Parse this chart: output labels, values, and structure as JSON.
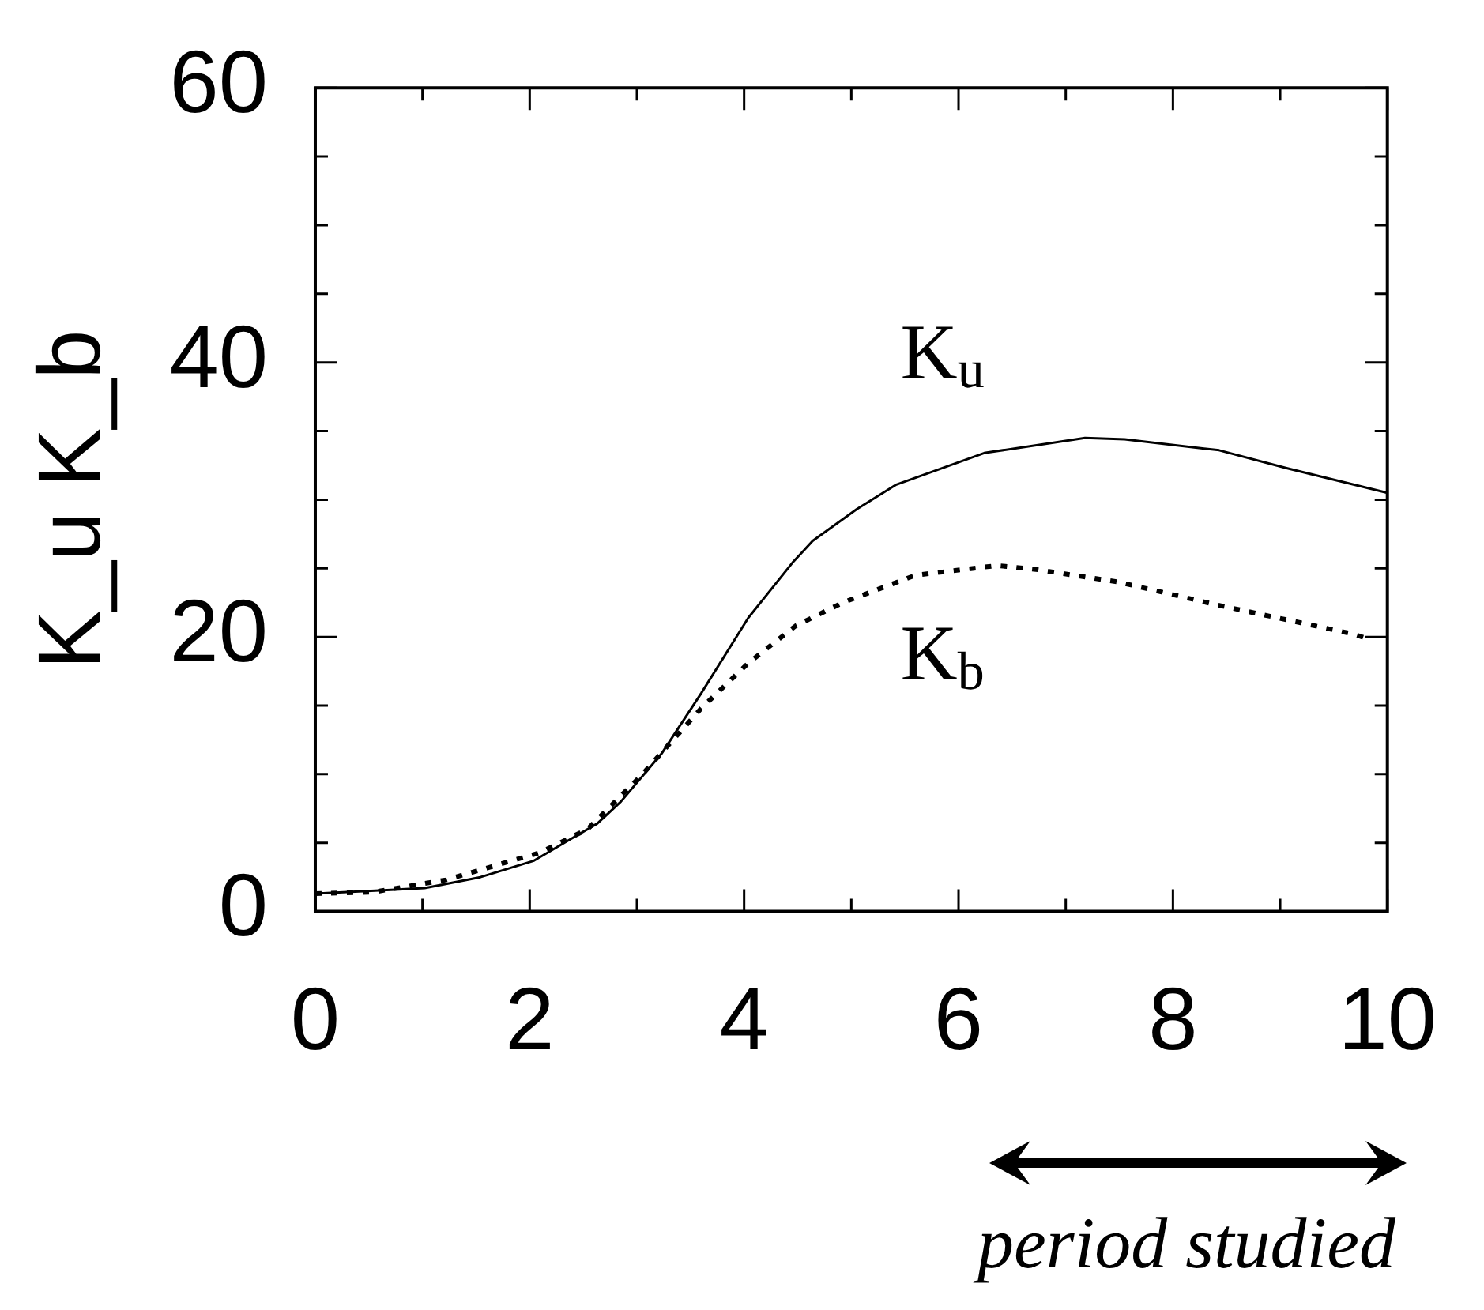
{
  "chart_data": {
    "type": "line",
    "ylabel": "K_u K_b",
    "xlim": [
      0,
      10
    ],
    "xticks": [
      0,
      {
        "value": 1,
        "label": null
      },
      2,
      {
        "value": 3,
        "label": null
      },
      4,
      {
        "value": 5,
        "label": null
      },
      6,
      {
        "value": 7,
        "label": null
      },
      8,
      {
        "value": 9,
        "label": null
      },
      10
    ],
    "ylim": [
      0,
      60
    ],
    "yticks": [
      0,
      {
        "value": 5,
        "label": null
      },
      {
        "value": 10,
        "label": null
      },
      {
        "value": 15,
        "label": null
      },
      20,
      {
        "value": 25,
        "label": null
      },
      {
        "value": 30,
        "label": null
      },
      {
        "value": 35,
        "label": null
      },
      40,
      {
        "value": 45,
        "label": null
      },
      {
        "value": 50,
        "label": null
      },
      {
        "value": 55,
        "label": null
      },
      60
    ],
    "grid": false,
    "legend": false,
    "marker": "none",
    "series": [
      {
        "name": "K$_{u}$",
        "color": "#000000",
        "line_style": "solid",
        "x": [
          0,
          1.02,
          1.54,
          2.04,
          2.41,
          2.63,
          2.85,
          3.23,
          3.6,
          4.04,
          4.45,
          4.64,
          5.05,
          5.42,
          6.24,
          7.18,
          7.55,
          8.43,
          9.06,
          10
        ],
        "values": [
          1.3,
          1.7,
          2.5,
          3.7,
          5.4,
          6.4,
          8.0,
          11.5,
          15.9,
          21.4,
          25.4,
          27.0,
          29.3,
          31.1,
          33.4,
          34.5,
          34.4,
          33.6,
          32.3,
          30.5
        ]
      },
      {
        "name": "K$_{b}$",
        "color": "#000000",
        "line_style": "dotted",
        "x": [
          0,
          0.53,
          1.22,
          2.1,
          2.54,
          3.04,
          3.6,
          4.04,
          4.48,
          4.92,
          5.6,
          6.36,
          6.74,
          7.49,
          8.43,
          9.69,
          9.8
        ],
        "values": [
          1.3,
          1.4,
          2.3,
          4.3,
          6.0,
          9.9,
          14.8,
          18.1,
          20.8,
          22.5,
          24.5,
          25.2,
          24.9,
          24.0,
          22.3,
          20.2,
          19.9
        ]
      }
    ],
    "annotations": [
      "period studied"
    ]
  }
}
